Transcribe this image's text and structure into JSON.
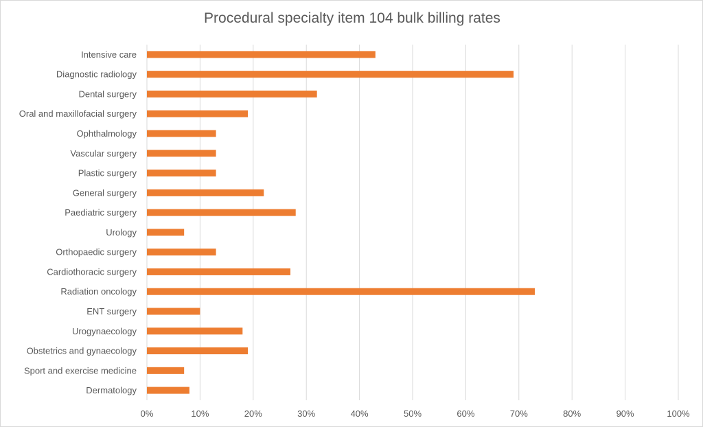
{
  "chart_data": {
    "type": "bar",
    "orientation": "horizontal",
    "title": "Procedural specialty item 104 bulk billing rates",
    "xlabel": "",
    "ylabel": "",
    "xlim": [
      0,
      100
    ],
    "x_ticks": [
      "0%",
      "10%",
      "20%",
      "30%",
      "40%",
      "50%",
      "60%",
      "70%",
      "80%",
      "90%",
      "100%"
    ],
    "grid": "vertical",
    "bar_color": "#ED7D31",
    "categories": [
      "Intensive care",
      "Diagnostic radiology",
      "Dental surgery",
      "Oral and maxillofacial surgery",
      "Ophthalmology",
      "Vascular surgery",
      "Plastic surgery",
      "General surgery",
      "Paediatric surgery",
      "Urology",
      "Orthopaedic surgery",
      "Cardiothoracic surgery",
      "Radiation oncology",
      "ENT surgery",
      "Urogynaecology",
      "Obstetrics and gynaecology",
      "Sport and exercise medicine",
      "Dermatology"
    ],
    "values": [
      43,
      69,
      32,
      19,
      13,
      13,
      13,
      22,
      28,
      7,
      13,
      27,
      73,
      10,
      18,
      19,
      7,
      8
    ]
  }
}
